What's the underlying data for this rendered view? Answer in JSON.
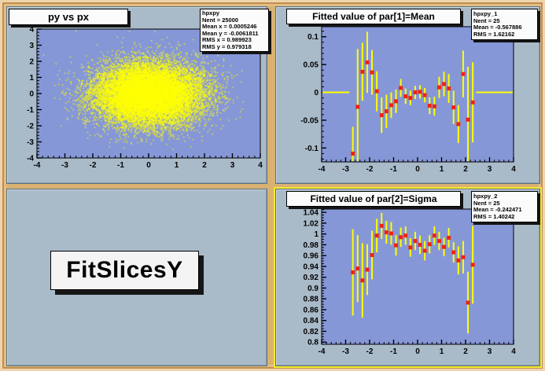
{
  "colors": {
    "canvas_bg": "#d9b172",
    "pad_bg": "#a9bac9",
    "frame_bg": "#8697d8",
    "marker_red": "#f02010",
    "errorbar_yellow": "#ffff00",
    "scatter_yellow": "#ffff00",
    "pave_bg": "#fbfbfb",
    "selected_pad_outline": "#f4ec2b"
  },
  "pads": {
    "scatter": {
      "title": "py vs px",
      "stats": [
        "hpxpy",
        "Nent = 25000",
        "Mean x = 0.0005246",
        "Mean y = -0.0061811",
        "RMS x  = 0.989923",
        "RMS y  = 0.979318"
      ]
    },
    "mean": {
      "title": "Fitted value of par[1]=Mean",
      "stats": [
        "hpxpy_1",
        "Nent = 25",
        "Mean  = -0.567886",
        "RMS   = 1.62162"
      ]
    },
    "sigma": {
      "title": "Fitted value of par[2]=Sigma",
      "stats": [
        "hpxpy_2",
        "Nent = 25",
        "Mean  = -0.242471",
        "RMS   = 1.40242"
      ]
    },
    "label": {
      "text": "FitSlicesY"
    }
  },
  "chart_data": [
    {
      "id": "scatter",
      "type": "scatter",
      "title": "py vs px",
      "xlim": [
        -4,
        4
      ],
      "ylim": [
        -4,
        4
      ],
      "xticks": [
        -4,
        -3,
        -2,
        -1,
        0,
        1,
        2,
        3,
        4
      ],
      "xtick_labels": [
        "-4",
        "-3",
        "-2",
        "-1",
        "0",
        "1",
        "2",
        "3",
        "4"
      ],
      "yticks": [
        -4,
        -3,
        -2,
        -1,
        0,
        1,
        2,
        3,
        4
      ],
      "ytick_labels": [
        "-4",
        "-3",
        "-2",
        "-1",
        "0",
        "1",
        "2",
        "3",
        "4"
      ],
      "xminor": 0.2,
      "yminor": 0.2,
      "grid": false,
      "distribution": {
        "kind": "gaussian2d",
        "entries": 25000,
        "mean": [
          0.0005,
          -0.006
        ],
        "sigma": [
          0.99,
          0.98
        ],
        "rendered_points": 16000,
        "seed": 42
      }
    },
    {
      "id": "mean",
      "type": "scatter",
      "title": "Fitted value of par[1]=Mean",
      "xlim": [
        -4,
        4
      ],
      "ylim": [
        -0.125,
        0.118
      ],
      "xticks": [
        -4,
        -3,
        -2,
        -1,
        0,
        1,
        2,
        3,
        4
      ],
      "xtick_labels": [
        "-4",
        "-3",
        "-2",
        "-1",
        "0",
        "1",
        "2",
        "3",
        "4"
      ],
      "yticks": [
        -0.1,
        -0.05,
        0,
        0.05,
        0.1
      ],
      "ytick_labels": [
        "-0.1",
        "-0.05",
        "0",
        "0.05",
        "0.1"
      ],
      "xminor": 0.2,
      "yminor": 0.01,
      "grid": false,
      "zero_line_segments": [
        [
          -4,
          -2.84
        ],
        [
          2.44,
          4
        ]
      ],
      "series": [
        {
          "name": "hpxpy_1",
          "points": [
            [
              -2.7,
              -0.11,
              0.048
            ],
            [
              -2.5,
              -0.026,
              0.104
            ],
            [
              -2.3,
              0.037,
              0.052
            ],
            [
              -2.1,
              0.054,
              0.055
            ],
            [
              -1.9,
              0.036,
              0.04
            ],
            [
              -1.7,
              0.002,
              0.036
            ],
            [
              -1.5,
              -0.041,
              0.032
            ],
            [
              -1.3,
              -0.034,
              0.03
            ],
            [
              -1.1,
              -0.023,
              0.023
            ],
            [
              -0.9,
              -0.016,
              0.021
            ],
            [
              -0.7,
              0.008,
              0.016
            ],
            [
              -0.5,
              -0.007,
              0.014
            ],
            [
              -0.3,
              -0.01,
              0.013
            ],
            [
              -0.1,
              0.0,
              0.012
            ],
            [
              0.1,
              0.001,
              0.012
            ],
            [
              0.3,
              -0.005,
              0.013
            ],
            [
              0.5,
              -0.024,
              0.015
            ],
            [
              0.7,
              -0.025,
              0.017
            ],
            [
              0.9,
              0.009,
              0.019
            ],
            [
              1.1,
              0.015,
              0.022
            ],
            [
              1.3,
              0.007,
              0.026
            ],
            [
              1.5,
              -0.027,
              0.03
            ],
            [
              1.7,
              -0.057,
              0.034
            ],
            [
              1.9,
              0.033,
              0.042
            ],
            [
              2.1,
              -0.049,
              0.095
            ],
            [
              2.3,
              -0.018,
              0.072
            ]
          ]
        }
      ]
    },
    {
      "id": "sigma",
      "type": "scatter",
      "title": "Fitted value of par[2]=Sigma",
      "xlim": [
        -4,
        4
      ],
      "ylim": [
        0.796,
        1.046
      ],
      "xticks": [
        -4,
        -3,
        -2,
        -1,
        0,
        1,
        2,
        3,
        4
      ],
      "xtick_labels": [
        "-4",
        "-3",
        "-2",
        "-1",
        "0",
        "1",
        "2",
        "3",
        "4"
      ],
      "yticks": [
        0.8,
        0.82,
        0.84,
        0.86,
        0.88,
        0.9,
        0.92,
        0.94,
        0.96,
        0.98,
        1,
        1.02,
        1.04
      ],
      "ytick_labels": [
        "0.8",
        "0.82",
        "0.84",
        "0.86",
        "0.88",
        "0.9",
        "0.92",
        "0.94",
        "0.96",
        "0.98",
        "1",
        "1.02",
        "1.04"
      ],
      "xminor": 0.2,
      "yminor": 0.005,
      "grid": false,
      "series": [
        {
          "name": "hpxpy_2",
          "points": [
            [
              -2.7,
              0.929,
              0.08
            ],
            [
              -2.5,
              0.936,
              0.062
            ],
            [
              -2.3,
              0.914,
              0.069
            ],
            [
              -2.1,
              0.934,
              0.047
            ],
            [
              -1.9,
              0.961,
              0.045
            ],
            [
              -1.7,
              0.997,
              0.031
            ],
            [
              -1.5,
              1.015,
              0.024
            ],
            [
              -1.3,
              1.003,
              0.021
            ],
            [
              -1.1,
              1.001,
              0.021
            ],
            [
              -0.9,
              0.979,
              0.019
            ],
            [
              -0.7,
              0.994,
              0.018
            ],
            [
              -0.5,
              0.997,
              0.017
            ],
            [
              -0.3,
              0.975,
              0.017
            ],
            [
              -0.1,
              0.987,
              0.017
            ],
            [
              0.1,
              0.98,
              0.017
            ],
            [
              0.3,
              0.969,
              0.018
            ],
            [
              0.5,
              0.981,
              0.017
            ],
            [
              0.7,
              0.997,
              0.017
            ],
            [
              0.9,
              0.987,
              0.017
            ],
            [
              1.1,
              0.976,
              0.017
            ],
            [
              1.3,
              0.993,
              0.018
            ],
            [
              1.5,
              0.966,
              0.019
            ],
            [
              1.7,
              0.951,
              0.026
            ],
            [
              1.9,
              0.957,
              0.03
            ],
            [
              2.1,
              0.873,
              0.057
            ],
            [
              2.3,
              0.943,
              0.072
            ]
          ]
        }
      ]
    }
  ]
}
